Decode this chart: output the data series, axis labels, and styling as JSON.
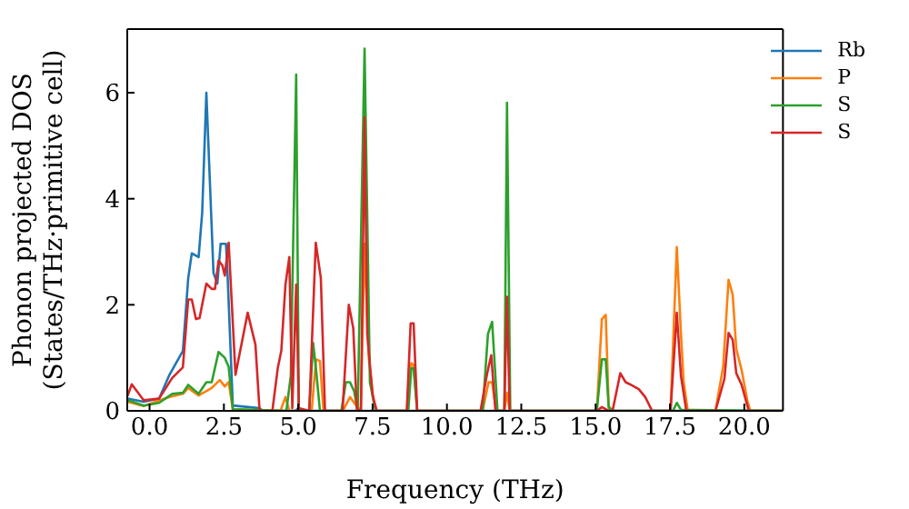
{
  "chart_data": {
    "type": "line",
    "xlabel": "Frequency (THz)",
    "ylabel": "Phonon projected DOS\n(States/THz·primitive cell)",
    "xlim": [
      -0.75,
      21.3
    ],
    "ylim": [
      0,
      7.2
    ],
    "xticks": [
      {
        "value": 0,
        "label": "0.0"
      },
      {
        "value": 2.5,
        "label": "2.5"
      },
      {
        "value": 5,
        "label": "5.0"
      },
      {
        "value": 7.5,
        "label": "7.5"
      },
      {
        "value": 10,
        "label": "10.0"
      },
      {
        "value": 12.5,
        "label": "12.5"
      },
      {
        "value": 15,
        "label": "15.0"
      },
      {
        "value": 17.5,
        "label": "17.5"
      },
      {
        "value": 20,
        "label": "20.0"
      }
    ],
    "yticks": [
      0,
      2,
      4,
      6
    ],
    "legend": "top right",
    "marker": "none",
    "line_style": "solid",
    "series": [
      {
        "name": "Rb",
        "color": "#1f77b4",
        "x": [
          -0.74,
          -0.2,
          0.32,
          0.67,
          1.12,
          1.3,
          1.42,
          1.65,
          1.77,
          1.91,
          2.15,
          2.28,
          2.39,
          2.57,
          2.62,
          2.8,
          3.7,
          3.8,
          4.9,
          5.0,
          5.1,
          21.3
        ],
        "values": [
          0.23,
          0.17,
          0.23,
          0.68,
          1.13,
          2.5,
          2.97,
          2.9,
          3.74,
          6.0,
          2.6,
          2.4,
          3.15,
          3.15,
          2.6,
          0.1,
          0.05,
          0,
          0,
          0.05,
          0,
          0
        ]
      },
      {
        "name": "P",
        "color": "#ff7f0e",
        "x": [
          -0.74,
          -0.2,
          0.67,
          1.12,
          1.3,
          1.65,
          2.09,
          2.36,
          2.53,
          2.66,
          2.8,
          4.4,
          4.57,
          4.7,
          5.45,
          5.6,
          5.73,
          5.85,
          6.5,
          6.74,
          6.95,
          7.1,
          7.23,
          7.37,
          7.55,
          7.64,
          8.65,
          8.8,
          8.88,
          9.0,
          11.2,
          11.4,
          11.52,
          11.66,
          11.93,
          12.02,
          12.11,
          15.04,
          15.21,
          15.34,
          15.44,
          15.57,
          17.52,
          17.73,
          17.87,
          17.96,
          18.1,
          19.03,
          19.29,
          19.47,
          19.61,
          19.73,
          19.91,
          20.1,
          20.2,
          21.3
        ],
        "values": [
          0.17,
          0.09,
          0.26,
          0.32,
          0.43,
          0.29,
          0.43,
          0.58,
          0.46,
          0.54,
          0.03,
          0,
          0.26,
          0,
          0,
          0.97,
          0.94,
          0,
          0,
          0.26,
          0.1,
          0,
          3.15,
          1.0,
          0.1,
          0,
          0,
          0.9,
          0.86,
          0,
          0,
          0.54,
          0.54,
          0,
          0,
          0.34,
          0,
          0,
          1.73,
          1.81,
          0.09,
          0,
          0,
          3.09,
          1.45,
          0.54,
          0,
          0,
          0.83,
          2.47,
          2.19,
          1.17,
          0.77,
          0.2,
          0,
          0
        ]
      },
      {
        "name": "S",
        "color": "#2ca02c",
        "x": [
          -0.74,
          -0.2,
          0.32,
          0.76,
          1.12,
          1.3,
          1.65,
          1.91,
          2.09,
          2.32,
          2.53,
          2.66,
          2.8,
          4.6,
          4.75,
          4.93,
          5.02,
          5.37,
          5.5,
          5.6,
          5.73,
          6.45,
          6.6,
          6.74,
          6.88,
          7.0,
          7.23,
          7.41,
          7.6,
          8.7,
          8.8,
          8.88,
          9.0,
          11.2,
          11.38,
          11.52,
          11.7,
          11.93,
          12.02,
          12.13,
          15.04,
          15.21,
          15.34,
          15.44,
          15.57,
          17.6,
          17.73,
          17.87,
          21.3
        ],
        "values": [
          0.2,
          0.1,
          0.15,
          0.32,
          0.34,
          0.49,
          0.32,
          0.54,
          0.54,
          1.11,
          1.0,
          0.83,
          0.03,
          0,
          0.66,
          6.34,
          0,
          0,
          1.28,
          0.77,
          0,
          0,
          0.54,
          0.54,
          0.37,
          0,
          6.83,
          0.54,
          0,
          0,
          0.8,
          0.8,
          0,
          0,
          1.45,
          1.68,
          0,
          0,
          5.81,
          0,
          0,
          0.97,
          0.97,
          0.06,
          0,
          0,
          0.15,
          0.02,
          0
        ]
      },
      {
        "name": "S",
        "color": "#d62728",
        "x": [
          -0.74,
          -0.6,
          -0.2,
          0.32,
          0.76,
          1.12,
          1.3,
          1.42,
          1.56,
          1.68,
          1.91,
          2.09,
          2.2,
          2.32,
          2.45,
          2.53,
          2.66,
          2.89,
          3.3,
          3.56,
          3.7,
          4.13,
          4.31,
          4.43,
          4.57,
          4.7,
          4.8,
          4.93,
          5.02,
          5.37,
          5.59,
          5.76,
          5.9,
          6.49,
          6.7,
          6.85,
          6.97,
          7.11,
          7.23,
          7.32,
          7.5,
          7.64,
          8.65,
          8.78,
          8.88,
          9.0,
          11.13,
          11.35,
          11.49,
          11.63,
          11.93,
          12.02,
          12.11,
          15.04,
          15.21,
          15.44,
          15.57,
          15.83,
          16.01,
          16.19,
          16.45,
          16.67,
          16.9,
          17.52,
          17.73,
          17.87,
          18.05,
          19.03,
          19.33,
          19.47,
          19.61,
          19.73,
          19.91,
          20.15,
          21.3
        ],
        "values": [
          0.28,
          0.5,
          0.2,
          0.23,
          0.62,
          0.82,
          2.1,
          2.1,
          1.73,
          1.75,
          2.4,
          2.3,
          2.3,
          2.83,
          2.74,
          2.55,
          3.17,
          0.68,
          1.85,
          1.25,
          0,
          0,
          0.8,
          1.13,
          2.38,
          2.9,
          0.05,
          2.38,
          0.05,
          0,
          3.17,
          2.5,
          0,
          0,
          2.0,
          1.56,
          0.03,
          0,
          5.53,
          1.45,
          0.3,
          0,
          0,
          1.65,
          1.65,
          0,
          0,
          0.7,
          1.05,
          0,
          0,
          2.15,
          0,
          0,
          0.07,
          0,
          0,
          0.71,
          0.54,
          0.49,
          0.41,
          0.26,
          0,
          0,
          1.85,
          0.66,
          0,
          0,
          0.6,
          1.47,
          1.34,
          0.71,
          0.49,
          0,
          0
        ]
      }
    ]
  }
}
